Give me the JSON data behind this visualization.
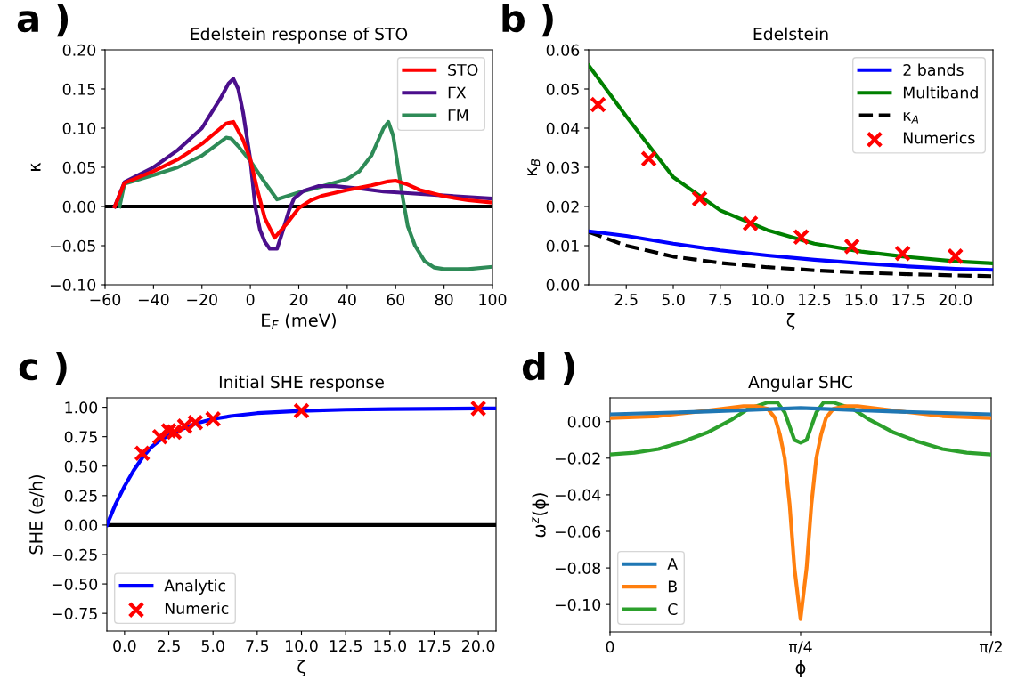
{
  "chart_data": [
    {
      "type": "line",
      "title": "Edelstein response of STO",
      "xlabel": "E$_{F}$ (meV)",
      "ylabel": "κ",
      "annotations": [
        "a )"
      ],
      "xlim": [
        -60,
        100
      ],
      "ylim": [
        -0.1,
        0.2
      ],
      "xticks": [
        {
          "value": -60,
          "label": "−60"
        },
        {
          "value": -40,
          "label": "−40"
        },
        {
          "value": -20,
          "label": "−20"
        },
        0,
        20,
        40,
        60,
        80,
        100
      ],
      "yticks": [
        {
          "value": -0.1,
          "label": "−0.10"
        },
        {
          "value": -0.05,
          "label": "−0.05"
        },
        {
          "value": 0,
          "label": "0.00"
        },
        {
          "value": 0.05,
          "label": "0.05"
        },
        {
          "value": 0.1,
          "label": "0.10"
        },
        {
          "value": 0.15,
          "label": "0.15"
        },
        {
          "value": 0.2,
          "label": "0.20"
        }
      ],
      "ref_lines": [
        {
          "axis": "y",
          "value": 0,
          "color": "#000000",
          "line_style": "solid"
        }
      ],
      "legend": "top right",
      "grid": false,
      "series": [
        {
          "name": "STO",
          "color": "#ff0000",
          "x": [
            -56,
            -52,
            -40,
            -30,
            -20,
            -10,
            -7,
            -3,
            0,
            3,
            6,
            10,
            15,
            20,
            25,
            30,
            40,
            50,
            57,
            60,
            65,
            70,
            80,
            90,
            100
          ],
          "values": [
            0,
            0.03,
            0.045,
            0.06,
            0.08,
            0.106,
            0.108,
            0.085,
            0.06,
            0.02,
            -0.015,
            -0.04,
            -0.022,
            -0.002,
            0.008,
            0.014,
            0.021,
            0.027,
            0.032,
            0.033,
            0.028,
            0.021,
            0.013,
            0.008,
            0.005
          ]
        },
        {
          "name": "ΓX",
          "color": "#4b0f8c",
          "x": [
            -56,
            -52,
            -40,
            -30,
            -20,
            -12,
            -9,
            -7,
            -5,
            -3,
            0,
            2,
            4,
            6,
            8,
            11,
            13,
            16,
            18,
            22,
            28,
            35,
            45,
            55,
            65,
            80,
            100
          ],
          "values": [
            0,
            0.031,
            0.05,
            0.072,
            0.1,
            0.14,
            0.157,
            0.163,
            0.15,
            0.12,
            0.06,
            0.0,
            -0.03,
            -0.045,
            -0.054,
            -0.054,
            -0.035,
            -0.005,
            0.01,
            0.02,
            0.026,
            0.026,
            0.023,
            0.019,
            0.017,
            0.014,
            0.01
          ]
        },
        {
          "name": "ΓM",
          "color": "#2e8b57",
          "x": [
            -54,
            -52,
            -40,
            -30,
            -20,
            -10,
            -8,
            -5,
            0,
            5,
            11,
            20,
            30,
            40,
            45,
            50,
            55,
            57,
            59,
            61,
            63,
            65,
            68,
            72,
            76,
            80,
            85,
            90,
            100
          ],
          "values": [
            0,
            0.029,
            0.04,
            0.05,
            0.065,
            0.088,
            0.087,
            0.077,
            0.058,
            0.035,
            0.009,
            0.018,
            0.026,
            0.035,
            0.045,
            0.065,
            0.1,
            0.108,
            0.09,
            0.05,
            0.01,
            -0.025,
            -0.05,
            -0.07,
            -0.078,
            -0.08,
            -0.08,
            -0.08,
            -0.077
          ]
        }
      ]
    },
    {
      "type": "line",
      "title": "Edelstein",
      "xlabel": "ζ",
      "ylabel": "κ$_{B}$",
      "annotations": [
        "b )"
      ],
      "xlim": [
        0.5,
        22
      ],
      "ylim": [
        0,
        0.06
      ],
      "xticks": [
        {
          "value": 2.5,
          "label": "2.5"
        },
        {
          "value": 5,
          "label": "5.0"
        },
        {
          "value": 7.5,
          "label": "7.5"
        },
        {
          "value": 10,
          "label": "10.0"
        },
        {
          "value": 12.5,
          "label": "12.5"
        },
        {
          "value": 15,
          "label": "15.0"
        },
        {
          "value": 17.5,
          "label": "17.5"
        },
        {
          "value": 20,
          "label": "20.0"
        }
      ],
      "yticks": [
        {
          "value": 0,
          "label": "0.00"
        },
        {
          "value": 0.01,
          "label": "0.01"
        },
        {
          "value": 0.02,
          "label": "0.02"
        },
        {
          "value": 0.03,
          "label": "0.03"
        },
        {
          "value": 0.04,
          "label": "0.04"
        },
        {
          "value": 0.05,
          "label": "0.05"
        },
        {
          "value": 0.06,
          "label": "0.06"
        }
      ],
      "legend": "top right",
      "grid": false,
      "series": [
        {
          "name": "2 bands",
          "color": "#0000ff",
          "x": [
            0.5,
            2.5,
            5,
            7.5,
            10,
            12.5,
            15,
            17.5,
            20,
            22
          ],
          "values": [
            0.0137,
            0.0125,
            0.0105,
            0.0088,
            0.0075,
            0.0064,
            0.0055,
            0.0047,
            0.0041,
            0.0038
          ]
        },
        {
          "name": "Multiband",
          "color": "#008000",
          "x": [
            0.5,
            2.5,
            5,
            7.5,
            10,
            12.5,
            15,
            17.5,
            20,
            22
          ],
          "values": [
            0.056,
            0.043,
            0.0275,
            0.019,
            0.014,
            0.0105,
            0.0085,
            0.0071,
            0.006,
            0.0055
          ]
        },
        {
          "name": "κ$_{A}$",
          "color": "#000000",
          "line_style": "dashed",
          "x": [
            0.5,
            2.5,
            5,
            7.5,
            10,
            12.5,
            15,
            17.5,
            20,
            22
          ],
          "values": [
            0.0135,
            0.01,
            0.0072,
            0.0056,
            0.0045,
            0.0037,
            0.0031,
            0.0027,
            0.0024,
            0.0022
          ]
        },
        {
          "name": "Numerics",
          "type": "scatter",
          "marker": "cross",
          "color": "#ff0000",
          "x": [
            1,
            3.7,
            6.4,
            9.1,
            11.8,
            14.5,
            17.2,
            20
          ],
          "values": [
            0.046,
            0.0322,
            0.022,
            0.0157,
            0.0122,
            0.0098,
            0.008,
            0.0073
          ]
        }
      ]
    },
    {
      "type": "line",
      "title": "Initial SHE response",
      "xlabel": "ζ",
      "ylabel": "SHE (e/h)",
      "annotations": [
        "c )"
      ],
      "xlim": [
        -1,
        21
      ],
      "ylim": [
        -0.9,
        1.08
      ],
      "xticks": [
        {
          "value": 0,
          "label": "0.0"
        },
        {
          "value": 2.5,
          "label": "2.5"
        },
        {
          "value": 5,
          "label": "5.0"
        },
        {
          "value": 7.5,
          "label": "7.5"
        },
        {
          "value": 10,
          "label": "10.0"
        },
        {
          "value": 12.5,
          "label": "12.5"
        },
        {
          "value": 15,
          "label": "15.0"
        },
        {
          "value": 17.5,
          "label": "17.5"
        },
        {
          "value": 20,
          "label": "20.0"
        }
      ],
      "yticks": [
        {
          "value": -0.75,
          "label": "−0.75"
        },
        {
          "value": -0.5,
          "label": "−0.50"
        },
        {
          "value": -0.25,
          "label": "−0.25"
        },
        {
          "value": 0,
          "label": "0.00"
        },
        {
          "value": 0.25,
          "label": "0.25"
        },
        {
          "value": 0.5,
          "label": "0.50"
        },
        {
          "value": 0.75,
          "label": "0.75"
        },
        {
          "value": 1,
          "label": "1.00"
        }
      ],
      "ref_lines": [
        {
          "axis": "y",
          "value": 0,
          "color": "#000000",
          "line_style": "solid"
        }
      ],
      "legend": "bottom left",
      "grid": false,
      "series": [
        {
          "name": "Analytic",
          "color": "#0000ff",
          "x": [
            -1,
            -0.5,
            0,
            0.5,
            1,
            1.5,
            2,
            3,
            4,
            5,
            6,
            7.5,
            10,
            12.5,
            15,
            20,
            21
          ],
          "values": [
            0,
            0.18,
            0.33,
            0.46,
            0.57,
            0.66,
            0.72,
            0.8,
            0.86,
            0.9,
            0.925,
            0.95,
            0.97,
            0.98,
            0.985,
            0.99,
            0.99
          ]
        },
        {
          "name": "Numeric",
          "type": "scatter",
          "marker": "cross",
          "color": "#ff0000",
          "x": [
            1,
            2,
            2.5,
            2.8,
            3.4,
            4,
            5,
            10,
            20
          ],
          "values": [
            0.61,
            0.75,
            0.8,
            0.79,
            0.84,
            0.87,
            0.9,
            0.97,
            0.99
          ]
        }
      ]
    },
    {
      "type": "line",
      "title": "Angular SHC",
      "xlabel": "ϕ",
      "ylabel": "ω$^{z}$(ϕ)",
      "annotations": [
        "d )"
      ],
      "xlim": [
        0,
        1.5708
      ],
      "ylim": [
        -0.115,
        0.013
      ],
      "xticks": [
        {
          "value": 0,
          "label": "0"
        },
        {
          "value": 0.7854,
          "label": "π/4"
        },
        {
          "value": 1.5708,
          "label": "π/2"
        }
      ],
      "yticks": [
        {
          "value": -0.1,
          "label": "−0.10"
        },
        {
          "value": -0.08,
          "label": "−0.08"
        },
        {
          "value": -0.06,
          "label": "−0.06"
        },
        {
          "value": -0.04,
          "label": "−0.04"
        },
        {
          "value": -0.02,
          "label": "−0.02"
        },
        {
          "value": 0,
          "label": "0.00"
        }
      ],
      "legend": "bottom left",
      "grid": false,
      "series": [
        {
          "name": "A",
          "color": "#1f77b4",
          "x": [
            0,
            0.4,
            0.785,
            1.17,
            1.5708
          ],
          "values": [
            0.004,
            0.0055,
            0.0075,
            0.0055,
            0.004
          ]
        },
        {
          "name": "B",
          "color": "#ff7f0e",
          "x": [
            0,
            0.2,
            0.4,
            0.55,
            0.6,
            0.65,
            0.68,
            0.7,
            0.72,
            0.74,
            0.76,
            0.785,
            0.81,
            0.83,
            0.85,
            0.87,
            0.89,
            0.92,
            0.97,
            1.02,
            1.17,
            1.37,
            1.5708
          ],
          "values": [
            0.002,
            0.003,
            0.006,
            0.0085,
            0.0085,
            0.007,
            0.002,
            -0.007,
            -0.02,
            -0.045,
            -0.08,
            -0.108,
            -0.08,
            -0.045,
            -0.02,
            -0.007,
            0.002,
            0.007,
            0.0085,
            0.0085,
            0.006,
            0.003,
            0.002
          ]
        },
        {
          "name": "C",
          "color": "#2ca02c",
          "x": [
            0,
            0.1,
            0.2,
            0.3,
            0.4,
            0.5,
            0.57,
            0.65,
            0.69,
            0.72,
            0.76,
            0.785,
            0.81,
            0.85,
            0.88,
            0.92,
            1.0,
            1.07,
            1.17,
            1.27,
            1.37,
            1.47,
            1.5708
          ],
          "values": [
            -0.018,
            -0.017,
            -0.015,
            -0.011,
            -0.006,
            0.001,
            0.007,
            0.0105,
            0.0105,
            0.005,
            -0.01,
            -0.0115,
            -0.01,
            0.005,
            0.0105,
            0.0105,
            0.007,
            0.001,
            -0.006,
            -0.011,
            -0.015,
            -0.017,
            -0.018
          ]
        }
      ]
    }
  ]
}
